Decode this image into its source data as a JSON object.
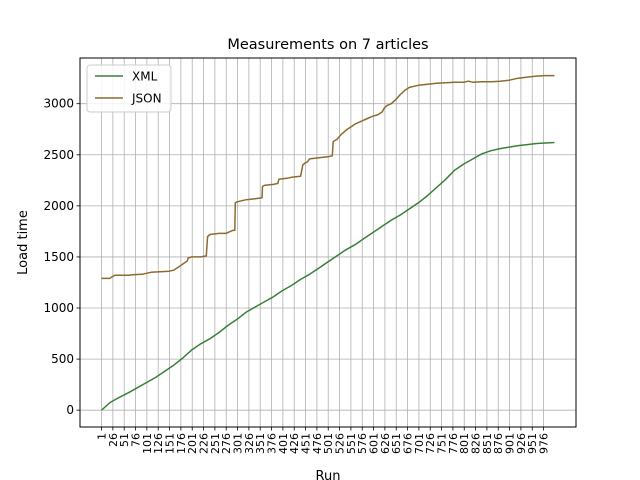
{
  "chart_data": {
    "type": "line",
    "title": "Measurements on 7 articles",
    "xlabel": "Run",
    "ylabel": "Load time",
    "xlim": [
      -46.5,
      1047.5
    ],
    "ylim": [
      -164.7,
      3447.3
    ],
    "x_ticks": [
      1,
      26,
      51,
      76,
      101,
      126,
      151,
      176,
      201,
      226,
      251,
      276,
      301,
      326,
      351,
      376,
      401,
      426,
      451,
      476,
      501,
      526,
      551,
      576,
      601,
      626,
      651,
      676,
      701,
      726,
      751,
      776,
      801,
      826,
      851,
      876,
      901,
      926,
      951,
      976
    ],
    "y_ticks": [
      0,
      500,
      1000,
      1500,
      2000,
      2500,
      3000
    ],
    "grid": true,
    "legend_position": "top-left",
    "series": [
      {
        "name": "XML",
        "color": "#3a7f3a",
        "x": [
          1,
          20,
          40,
          60,
          80,
          100,
          120,
          140,
          160,
          180,
          200,
          220,
          240,
          260,
          280,
          300,
          320,
          340,
          360,
          380,
          400,
          420,
          440,
          460,
          480,
          500,
          520,
          540,
          560,
          580,
          600,
          620,
          640,
          660,
          680,
          700,
          720,
          740,
          760,
          780,
          800,
          820,
          840,
          860,
          880,
          900,
          920,
          940,
          960,
          980,
          1000
        ],
        "values": [
          0,
          75,
          125,
          170,
          220,
          270,
          320,
          380,
          440,
          510,
          590,
          650,
          700,
          760,
          830,
          890,
          960,
          1010,
          1060,
          1110,
          1170,
          1220,
          1280,
          1330,
          1390,
          1450,
          1510,
          1570,
          1620,
          1680,
          1740,
          1800,
          1860,
          1910,
          1970,
          2030,
          2100,
          2180,
          2260,
          2350,
          2410,
          2460,
          2510,
          2540,
          2560,
          2575,
          2590,
          2600,
          2610,
          2615,
          2620
        ]
      },
      {
        "name": "JSON",
        "color": "#8c6b30",
        "x": [
          1,
          20,
          22,
          30,
          60,
          70,
          90,
          100,
          110,
          130,
          150,
          160,
          170,
          180,
          190,
          192,
          200,
          210,
          220,
          232,
          235,
          240,
          260,
          275,
          290,
          295,
          296,
          300,
          320,
          340,
          355,
          356,
          360,
          380,
          390,
          392,
          410,
          420,
          440,
          445,
          450,
          455,
          460,
          480,
          500,
          510,
          512,
          520,
          530,
          540,
          550,
          560,
          570,
          580,
          590,
          600,
          610,
          620,
          625,
          630,
          640,
          650,
          660,
          670,
          680,
          690,
          700,
          720,
          740,
          760,
          780,
          800,
          810,
          820,
          840,
          860,
          880,
          900,
          920,
          940,
          960,
          980,
          1000
        ],
        "values": [
          1290,
          1290,
          1300,
          1320,
          1320,
          1325,
          1330,
          1340,
          1350,
          1355,
          1360,
          1370,
          1400,
          1430,
          1460,
          1490,
          1500,
          1500,
          1500,
          1510,
          1700,
          1720,
          1730,
          1730,
          1760,
          1760,
          2030,
          2040,
          2060,
          2070,
          2080,
          2190,
          2200,
          2210,
          2220,
          2260,
          2270,
          2280,
          2290,
          2400,
          2420,
          2430,
          2460,
          2470,
          2480,
          2490,
          2630,
          2650,
          2700,
          2740,
          2770,
          2800,
          2820,
          2840,
          2860,
          2880,
          2890,
          2920,
          2960,
          2980,
          3000,
          3040,
          3090,
          3130,
          3160,
          3170,
          3180,
          3190,
          3200,
          3205,
          3210,
          3210,
          3220,
          3210,
          3215,
          3215,
          3220,
          3230,
          3250,
          3260,
          3270,
          3275,
          3275
        ]
      }
    ]
  }
}
